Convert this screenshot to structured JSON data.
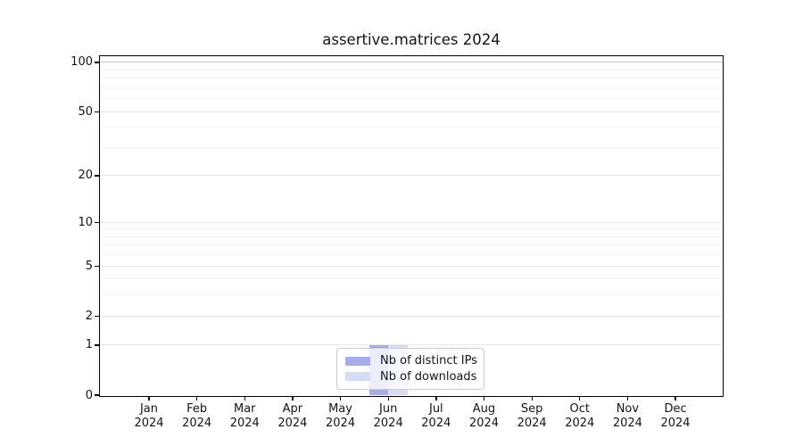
{
  "chart_data": {
    "type": "bar",
    "title": "assertive.matrices 2024",
    "categories": [
      {
        "month": "Jan",
        "year": "2024"
      },
      {
        "month": "Feb",
        "year": "2024"
      },
      {
        "month": "Mar",
        "year": "2024"
      },
      {
        "month": "Apr",
        "year": "2024"
      },
      {
        "month": "May",
        "year": "2024"
      },
      {
        "month": "Jun",
        "year": "2024"
      },
      {
        "month": "Jul",
        "year": "2024"
      },
      {
        "month": "Aug",
        "year": "2024"
      },
      {
        "month": "Sep",
        "year": "2024"
      },
      {
        "month": "Oct",
        "year": "2024"
      },
      {
        "month": "Nov",
        "year": "2024"
      },
      {
        "month": "Dec",
        "year": "2024"
      }
    ],
    "series": [
      {
        "name": "Nb of distinct IPs",
        "color": "#a6acee",
        "values": [
          0,
          0,
          0,
          0,
          0,
          1,
          0,
          0,
          0,
          0,
          0,
          0
        ]
      },
      {
        "name": "Nb of downloads",
        "color": "#d8dbf8",
        "values": [
          0,
          0,
          0,
          0,
          0,
          1,
          0,
          0,
          0,
          0,
          0,
          0
        ]
      }
    ],
    "xlabel": "",
    "ylabel": "",
    "y_scale": "log1p",
    "ylim": [
      0,
      109
    ],
    "y_major_ticks": [
      0,
      1,
      2,
      5,
      10,
      20,
      50,
      100
    ],
    "y_minor_gridlines": [
      3,
      4,
      6,
      7,
      8,
      9,
      30,
      40,
      60,
      70,
      80,
      90
    ],
    "grid": true,
    "legend_position": "lower center",
    "colors": {
      "axis": "#000000",
      "text": "#151515",
      "grid_top": "#c6c6c6",
      "grid_major": "#e8e8e8",
      "grid_minor": "#f2f2f2",
      "background": "#ffffff",
      "legend_border": "#cccccc"
    }
  }
}
